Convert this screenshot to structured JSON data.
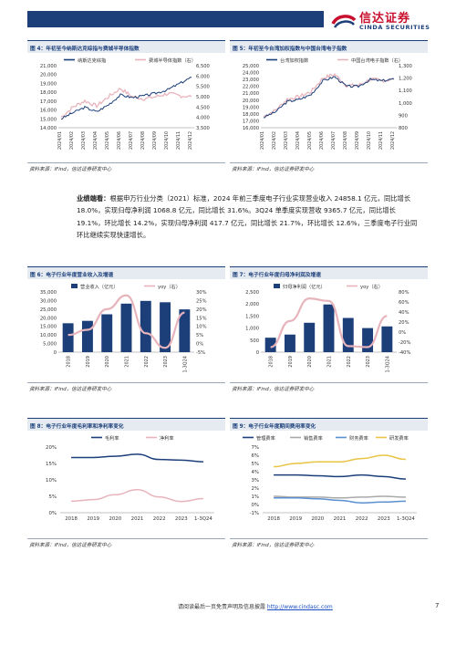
{
  "header": {
    "logo_cn": "信达证券",
    "logo_en": "CINDA SECURITIES",
    "band_color": "#1c3f7a",
    "logo_color": "#c8102e"
  },
  "colors": {
    "navy": "#1c3f7a",
    "pink": "#e8b4bc",
    "gray": "#a9a9a9",
    "blue": "#5b8fd0",
    "yellow": "#e8c445",
    "orange": "#e07b3a"
  },
  "figures": {
    "fig4": {
      "title": "图 4：年初至今纳斯达克综指与费城半导体指数",
      "source": "资料来源：iFind，信达证券研发中心",
      "chart_data": {
        "type": "line",
        "series": [
          {
            "name": "纳斯达克综指",
            "axis": "left"
          },
          {
            "name": "费城半导体指数（右）",
            "axis": "right"
          }
        ],
        "left_ticks": [
          "21,000",
          "20,000",
          "19,000",
          "18,000",
          "17,000",
          "16,000",
          "15,000",
          "14,000"
        ],
        "right_ticks": [
          "6,500",
          "6,000",
          "5,500",
          "5,000",
          "4,500",
          "4,000",
          "3,500"
        ],
        "x_ticks": [
          "2024/01",
          "2024/02",
          "2024/03",
          "2024/04",
          "2024/05",
          "2024/06",
          "2024/07",
          "2024/08",
          "2024/09",
          "2024/10",
          "2024/11",
          "2024/12"
        ],
        "left_ylim": [
          14000,
          21000
        ],
        "right_ylim": [
          3500,
          6500
        ],
        "x_values_monthly": [
          "2024/01",
          "2024/02",
          "2024/03",
          "2024/04",
          "2024/05",
          "2024/06",
          "2024/07",
          "2024/08",
          "2024/09",
          "2024/10",
          "2024/11",
          "2024/12"
        ],
        "left_values": [
          15000,
          15700,
          16300,
          15800,
          16600,
          17700,
          17400,
          17600,
          17900,
          18300,
          19000,
          19700
        ],
        "right_values": [
          4000,
          4500,
          4800,
          4550,
          5000,
          5400,
          5000,
          4900,
          5000,
          5150,
          5050,
          5000
        ]
      }
    },
    "fig5": {
      "title": "图 5：年初至今台湾加权指数与中国台湾电子指数",
      "source": "资料来源：iFind，信达证券研发中心",
      "chart_data": {
        "type": "line",
        "series": [
          {
            "name": "台湾加权指数",
            "axis": "left"
          },
          {
            "name": "中国台湾电子指数（右）",
            "axis": "right"
          }
        ],
        "left_ticks": [
          "25,000",
          "24,000",
          "23,000",
          "22,000",
          "21,000",
          "20,000",
          "19,000",
          "18,000",
          "17,000",
          "16,000"
        ],
        "right_ticks": [
          "1,300",
          "1,200",
          "1,100",
          "1,000",
          "900",
          "800"
        ],
        "x_ticks": [
          "2024/01",
          "2024/02",
          "2024/03",
          "2024/04",
          "2024/05",
          "2024/06",
          "2024/07",
          "2024/08",
          "2024/09",
          "2024/10",
          "2024/11",
          "2024/12"
        ],
        "left_ylim": [
          16000,
          25000
        ],
        "right_ylim": [
          800,
          1300
        ],
        "x_values_monthly": [
          "2024/01",
          "2024/02",
          "2024/03",
          "2024/04",
          "2024/05",
          "2024/06",
          "2024/07",
          "2024/08",
          "2024/09",
          "2024/10",
          "2024/11",
          "2024/12"
        ],
        "left_values": [
          17500,
          18300,
          19800,
          20100,
          20800,
          22800,
          23400,
          22000,
          22000,
          23000,
          22800,
          23100
        ],
        "right_values": [
          890,
          940,
          1030,
          1050,
          1090,
          1200,
          1230,
          1140,
          1140,
          1190,
          1180,
          1190
        ]
      }
    },
    "fig6": {
      "title": "图 6：电子行业年度营业收入及增速",
      "source": "资料来源：iFind，信达证券研发中心",
      "chart_data": {
        "type": "bar",
        "categories": [
          "2018",
          "2019",
          "2020",
          "2021",
          "2022",
          "2023",
          "1-3Q24"
        ],
        "series": [
          {
            "name": "营业收入（亿元）",
            "values": [
              16800,
              18200,
              22000,
              28200,
              29800,
              29000,
              24859
            ],
            "axis": "left"
          },
          {
            "name": "yoy（右）",
            "values": [
              0.05,
              0.08,
              0.2,
              0.28,
              0.06,
              -0.025,
              0.18
            ],
            "axis": "right"
          }
        ],
        "left_ticks": [
          "35,000",
          "30,000",
          "25,000",
          "20,000",
          "15,000",
          "10,000",
          "5,000",
          "0"
        ],
        "right_ticks": [
          "30%",
          "25%",
          "20%",
          "15%",
          "10%",
          "5%",
          "0%",
          "-5%"
        ],
        "left_ylim": [
          0,
          35000
        ],
        "right_ylim": [
          -0.05,
          0.3
        ]
      }
    },
    "fig7": {
      "title": "图 7：电子行业年度归母净利润及增速",
      "source": "资料来源：iFind，信达证券研发中心",
      "chart_data": {
        "type": "bar",
        "categories": [
          "2018",
          "2019",
          "2020",
          "2021",
          "2022",
          "2023",
          "1-3Q24"
        ],
        "series": [
          {
            "name": "归母净利润（亿元）",
            "values": [
              600,
              730,
              1220,
              1980,
              1420,
              1000,
              1069
            ],
            "axis": "left"
          },
          {
            "name": "yoy（右）",
            "values": [
              -0.3,
              0.22,
              0.67,
              0.62,
              -0.28,
              -0.3,
              0.32
            ],
            "axis": "right"
          }
        ],
        "left_ticks": [
          "2,500",
          "2,000",
          "1,500",
          "1,000",
          "500",
          "0"
        ],
        "right_ticks": [
          "80%",
          "60%",
          "40%",
          "20%",
          "0%",
          "-20%",
          "-40%"
        ],
        "left_ylim": [
          0,
          2500
        ],
        "right_ylim": [
          -0.4,
          0.8
        ]
      }
    },
    "fig8": {
      "title": "图 8：电子行业年度毛利率和净利率变化",
      "source": "资料来源：iFind，信达证券研发中心",
      "chart_data": {
        "type": "line",
        "categories": [
          "2018",
          "2019",
          "2020",
          "2021",
          "2022",
          "2023",
          "1-3Q24"
        ],
        "series": [
          {
            "name": "毛利率",
            "values": [
              0.168,
              0.168,
              0.172,
              0.178,
              0.162,
              0.16,
              0.155
            ]
          },
          {
            "name": "净利率",
            "values": [
              0.035,
              0.04,
              0.055,
              0.07,
              0.048,
              0.034,
              0.043
            ]
          }
        ],
        "y_ticks": [
          "20%",
          "15%",
          "10%",
          "5%",
          "0%"
        ],
        "ylim": [
          0,
          0.2
        ]
      }
    },
    "fig9": {
      "title": "图 9：电子行业年度期间费用率变化",
      "source": "资料来源：iFind，信达证券研发中心",
      "chart_data": {
        "type": "line",
        "categories": [
          "2018",
          "2019",
          "2020",
          "2021",
          "2022",
          "2023",
          "1-3Q24"
        ],
        "series": [
          {
            "name": "管理费率",
            "values": [
              0.036,
              0.036,
              0.035,
              0.034,
              0.036,
              0.034,
              0.031
            ]
          },
          {
            "name": "销售费率",
            "values": [
              0.01,
              0.009,
              0.009,
              0.008,
              0.009,
              0.01,
              0.009
            ]
          },
          {
            "name": "财务费率",
            "values": [
              0.008,
              0.008,
              0.007,
              0.005,
              0.002,
              0.003,
              0.004
            ]
          },
          {
            "name": "研发费率",
            "values": [
              0.046,
              0.05,
              0.052,
              0.052,
              0.056,
              0.06,
              0.055
            ]
          }
        ],
        "y_ticks": [
          "7%",
          "6%",
          "5%",
          "4%",
          "3%",
          "2%",
          "1%",
          "0%",
          "-1%"
        ],
        "ylim": [
          -0.01,
          0.07
        ]
      }
    }
  },
  "body": {
    "lead": "业绩端看：",
    "text": "根据申万行业分类（2021）标准，2024 年前三季度电子行业实现营业收入 24858.1 亿元，同比增长 18.0%，实现归母净利润 1068.8 亿元，同比增长 31.6%。3Q24 单季度实现营收 9365.7 亿元，同比增长 19.1%，环比增长 14.2%，实现归母净利润 417.7 亿元，同比增长 21.7%，环比增长 12.6%，三季度电子行业同环比继续实现快速增长。"
  },
  "footer": {
    "text": "请阅读最后一页免责声明及信息披露 ",
    "link": "http://www.cindasc.com",
    "page": "7"
  }
}
